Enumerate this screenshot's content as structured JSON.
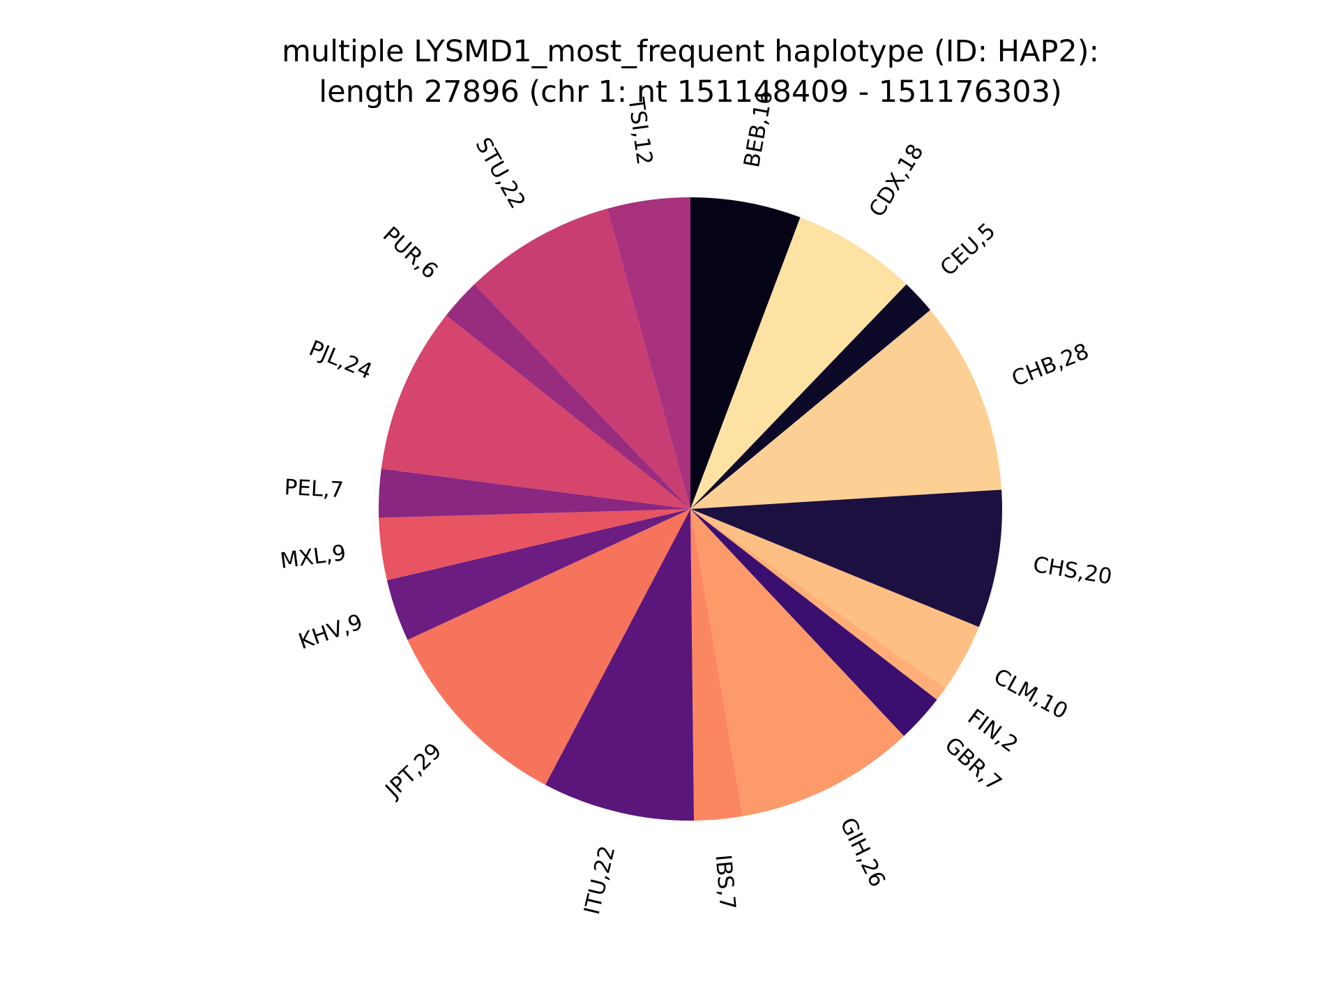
{
  "chart_data": {
    "type": "pie",
    "title": [
      "multiple LYSMD1_most_frequent haplotype (ID: HAP2):",
      "length 27896 (chr 1: nt 151148409 - 151176303)"
    ],
    "start_angle_deg": 90,
    "direction": "clockwise",
    "slices": [
      {
        "label": "BEB,16",
        "category": "BEB",
        "value": 16,
        "color": "#050417"
      },
      {
        "label": "CDX,18",
        "category": "CDX",
        "value": 18,
        "color": "#fde2a3"
      },
      {
        "label": "CEU,5",
        "category": "CEU",
        "value": 5,
        "color": "#0d0a29"
      },
      {
        "label": "CHB,28",
        "category": "CHB",
        "value": 28,
        "color": "#fcd095"
      },
      {
        "label": "CHS,20",
        "category": "CHS",
        "value": 20,
        "color": "#1c1040"
      },
      {
        "label": "CLM,10",
        "category": "CLM",
        "value": 10,
        "color": "#febf84"
      },
      {
        "label": "FIN,2",
        "category": "FIN",
        "value": 2,
        "color": "#feae76"
      },
      {
        "label": "GBR,7",
        "category": "GBR",
        "value": 7,
        "color": "#3b0f70"
      },
      {
        "label": "GIH,26",
        "category": "GIH",
        "value": 26,
        "color": "#fd9a6a"
      },
      {
        "label": "IBS,7",
        "category": "IBS",
        "value": 7,
        "color": "#fb8761"
      },
      {
        "label": "ITU,22",
        "category": "ITU",
        "value": 22,
        "color": "#5b167b"
      },
      {
        "label": "JPT,29",
        "category": "JPT",
        "value": 29,
        "color": "#f6745c"
      },
      {
        "label": "KHV,9",
        "category": "KHV",
        "value": 9,
        "color": "#6b1d81"
      },
      {
        "label": "MXL,9",
        "category": "MXL",
        "value": 9,
        "color": "#e85462"
      },
      {
        "label": "PEL,7",
        "category": "PEL",
        "value": 7,
        "color": "#892781"
      },
      {
        "label": "PJL,24",
        "category": "PJL",
        "value": 24,
        "color": "#d6456c"
      },
      {
        "label": "PUR,6",
        "category": "PUR",
        "value": 6,
        "color": "#982d80"
      },
      {
        "label": "STU,22",
        "category": "STU",
        "value": 22,
        "color": "#c83e73"
      },
      {
        "label": "TSI,12",
        "category": "TSI",
        "value": 12,
        "color": "#a8327d"
      }
    ]
  }
}
